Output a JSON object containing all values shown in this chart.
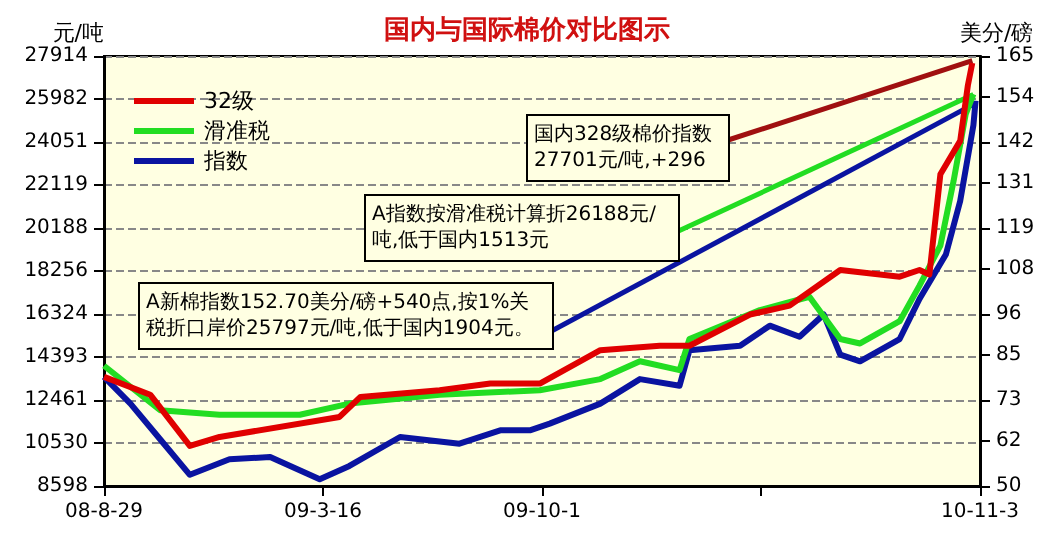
{
  "chart_data": {
    "type": "line",
    "title": "国内与国际棉价对比图示",
    "ylabel": "元/吨",
    "y2label": "美分/磅",
    "xlim": [
      "2008-08-29",
      "2010-11-03"
    ],
    "xticks": [
      {
        "value": "2008-08-29",
        "label": "08-8-29"
      },
      {
        "value": "2009-03-16",
        "label": "09-3-16"
      },
      {
        "value": "2009-10-01",
        "label": "09-10-1"
      },
      {
        "value": "2010-04-18",
        "label": null
      },
      {
        "value": "2010-11-03",
        "label": "10-11-3"
      }
    ],
    "ylim": [
      8598,
      27914
    ],
    "yticks": [
      8598,
      10530,
      12461,
      14393,
      16324,
      18256,
      20188,
      22119,
      24051,
      25982,
      27914
    ],
    "y2lim": [
      50,
      165
    ],
    "y2ticks": [
      50,
      62,
      73,
      85,
      96,
      108,
      119,
      131,
      142,
      154,
      165
    ],
    "grid": "y",
    "legend": "top left",
    "line_style": "solid",
    "marker": "none",
    "series": [
      {
        "name": "32级",
        "color": "#e00000",
        "x": [
          "2008-08-29",
          "2008-10-10",
          "2008-11-15",
          "2008-12-12",
          "2009-03-31",
          "2009-04-19",
          "2009-06-30",
          "2009-08-15",
          "2009-09-29",
          "2009-11-23",
          "2010-01-16",
          "2010-02-12",
          "2010-04-08",
          "2010-05-14",
          "2010-06-29",
          "2010-08-22",
          "2010-09-09",
          "2010-09-18",
          "2010-09-28",
          "2010-10-16",
          "2010-10-23",
          "2010-10-27"
        ],
        "values": [
          13500,
          12700,
          10400,
          10800,
          11700,
          12600,
          12900,
          13200,
          13200,
          14700,
          14900,
          14900,
          16300,
          16700,
          18300,
          18000,
          18300,
          18100,
          22600,
          24100,
          26600,
          27600
        ]
      },
      {
        "name": "滑准税",
        "color": "#22dd22",
        "x": [
          "2008-08-29",
          "2008-10-19",
          "2008-12-12",
          "2009-02-23",
          "2009-04-09",
          "2009-06-30",
          "2009-09-29",
          "2009-11-23",
          "2009-12-29",
          "2010-02-03",
          "2010-02-12",
          "2010-04-17",
          "2010-06-01",
          "2010-06-29",
          "2010-07-17",
          "2010-08-22",
          "2010-09-09",
          "2010-09-28",
          "2010-10-10",
          "2010-10-21",
          "2010-10-28"
        ],
        "values": [
          14000,
          12000,
          11800,
          11800,
          12300,
          12700,
          12900,
          13400,
          14200,
          13800,
          15200,
          16500,
          17100,
          15200,
          15000,
          16000,
          17600,
          19400,
          22300,
          25300,
          26200
        ]
      },
      {
        "name": "指数",
        "color": "#0a14a0",
        "x": [
          "2008-08-29",
          "2008-09-22",
          "2008-10-19",
          "2008-11-15",
          "2008-12-21",
          "2009-01-27",
          "2009-03-13",
          "2009-04-09",
          "2009-05-25",
          "2009-07-18",
          "2009-08-24",
          "2009-09-20",
          "2009-10-08",
          "2009-11-23",
          "2009-12-29",
          "2010-02-03",
          "2010-02-12",
          "2010-03-30",
          "2010-04-26",
          "2010-05-23",
          "2010-06-14",
          "2010-06-29",
          "2010-07-17",
          "2010-08-22",
          "2010-09-09",
          "2010-10-03",
          "2010-10-16",
          "2010-10-28",
          "2010-10-30"
        ],
        "values": [
          13500,
          12300,
          10700,
          9100,
          9800,
          9900,
          8900,
          9500,
          10800,
          10500,
          11100,
          11100,
          11400,
          12300,
          13400,
          13100,
          14700,
          14900,
          15800,
          15300,
          16300,
          14500,
          14200,
          15200,
          17000,
          19000,
          21400,
          24800,
          25900
        ]
      }
    ],
    "annotations": [
      {
        "text": "国内328级棉价指数27701元/吨,+296",
        "x": "2010-10-27",
        "y": 27701
      },
      {
        "text": "A指数按滑准税计算折26188元/吨,低于国内1513元",
        "x": "2010-10-28",
        "y": 26188
      },
      {
        "text": "A新棉指数152.70美分/磅+540点,按1%关税折口岸价25797元/吨,低于国内1904元。",
        "x": "2010-10-30",
        "y": 25797
      }
    ]
  }
}
